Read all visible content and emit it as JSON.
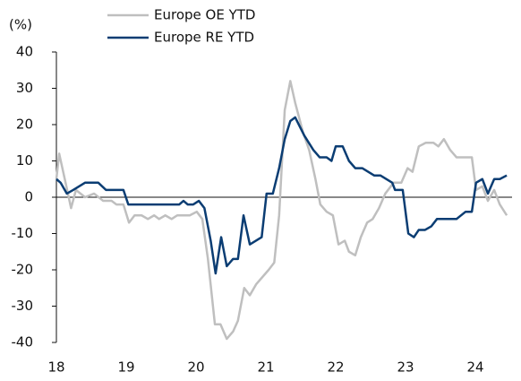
{
  "chart_data": {
    "type": "line",
    "y_label": "(%)",
    "legend": "top",
    "ylim": [
      -40,
      40
    ],
    "yticks": [
      -40,
      -30,
      -20,
      -10,
      0,
      10,
      20,
      30,
      40
    ],
    "xlim": [
      18,
      24.5
    ],
    "xticks": [
      18,
      19,
      20,
      21,
      22,
      23,
      24
    ],
    "series": [
      {
        "name": "Europe OE YTD",
        "color": "#bfbfbf",
        "x": [
          18.0,
          18.04,
          18.12,
          18.21,
          18.28,
          18.41,
          18.54,
          18.67,
          18.79,
          18.86,
          18.96,
          19.04,
          19.12,
          19.22,
          19.31,
          19.4,
          19.47,
          19.56,
          19.65,
          19.73,
          19.91,
          20.01,
          20.09,
          20.17,
          20.27,
          20.35,
          20.44,
          20.53,
          20.6,
          20.69,
          20.77,
          20.86,
          21.04,
          21.12,
          21.19,
          21.27,
          21.35,
          21.42,
          21.53,
          21.62,
          21.71,
          21.78,
          21.87,
          21.96,
          22.04,
          22.13,
          22.19,
          22.28,
          22.36,
          22.45,
          22.53,
          22.62,
          22.71,
          22.83,
          22.94,
          23.03,
          23.1,
          23.19,
          23.29,
          23.4,
          23.47,
          23.55,
          23.64,
          23.73,
          23.86,
          23.95,
          24.01,
          24.1,
          24.18,
          24.27,
          24.35,
          24.45
        ],
        "values": [
          5,
          12,
          5,
          -3,
          2,
          0,
          1,
          -1,
          -1,
          -2,
          -2,
          -7,
          -5,
          -5,
          -6,
          -5,
          -6,
          -5,
          -6,
          -5,
          -5,
          -4,
          -6,
          -17,
          -35,
          -35,
          -39,
          -37,
          -34,
          -25,
          -27,
          -24,
          -20,
          -18,
          -5,
          24,
          32,
          26,
          18,
          13,
          5,
          -2,
          -4,
          -5,
          -13,
          -12,
          -15,
          -16,
          -11,
          -7,
          -6,
          -3,
          1,
          4,
          4,
          8,
          7,
          14,
          15,
          15,
          14,
          16,
          13,
          11,
          11,
          11,
          2,
          3,
          -1,
          2,
          -2,
          -5
        ]
      },
      {
        "name": "Europe RE YTD",
        "color": "#0b3d73",
        "x": [
          18.0,
          18.06,
          18.15,
          18.24,
          18.41,
          18.6,
          18.71,
          18.96,
          19.03,
          19.76,
          19.82,
          19.88,
          19.96,
          20.04,
          20.12,
          20.21,
          20.28,
          20.36,
          20.44,
          20.53,
          20.6,
          20.68,
          20.77,
          20.94,
          21.01,
          21.1,
          21.19,
          21.27,
          21.35,
          21.42,
          21.55,
          21.68,
          21.77,
          21.87,
          21.94,
          22.0,
          22.1,
          22.19,
          22.28,
          22.38,
          22.55,
          22.64,
          22.81,
          22.85,
          22.96,
          23.04,
          23.12,
          23.19,
          23.28,
          23.37,
          23.45,
          23.67,
          23.73,
          23.86,
          23.95,
          24.01,
          24.1,
          24.18,
          24.27,
          24.35,
          24.45
        ],
        "values": [
          5,
          4,
          1,
          2,
          4,
          4,
          2,
          2,
          -2,
          -2,
          -1,
          -2,
          -2,
          -1,
          -3,
          -12,
          -21,
          -11,
          -19,
          -17,
          -17,
          -5,
          -13,
          -11,
          1,
          1,
          8,
          16,
          21,
          22,
          17,
          13,
          11,
          11,
          10,
          14,
          14,
          10,
          8,
          8,
          6,
          6,
          4,
          2,
          2,
          -10,
          -11,
          -9,
          -9,
          -8,
          -6,
          -6,
          -6,
          -4,
          -4,
          4,
          5,
          1,
          5,
          5,
          6
        ]
      }
    ]
  }
}
